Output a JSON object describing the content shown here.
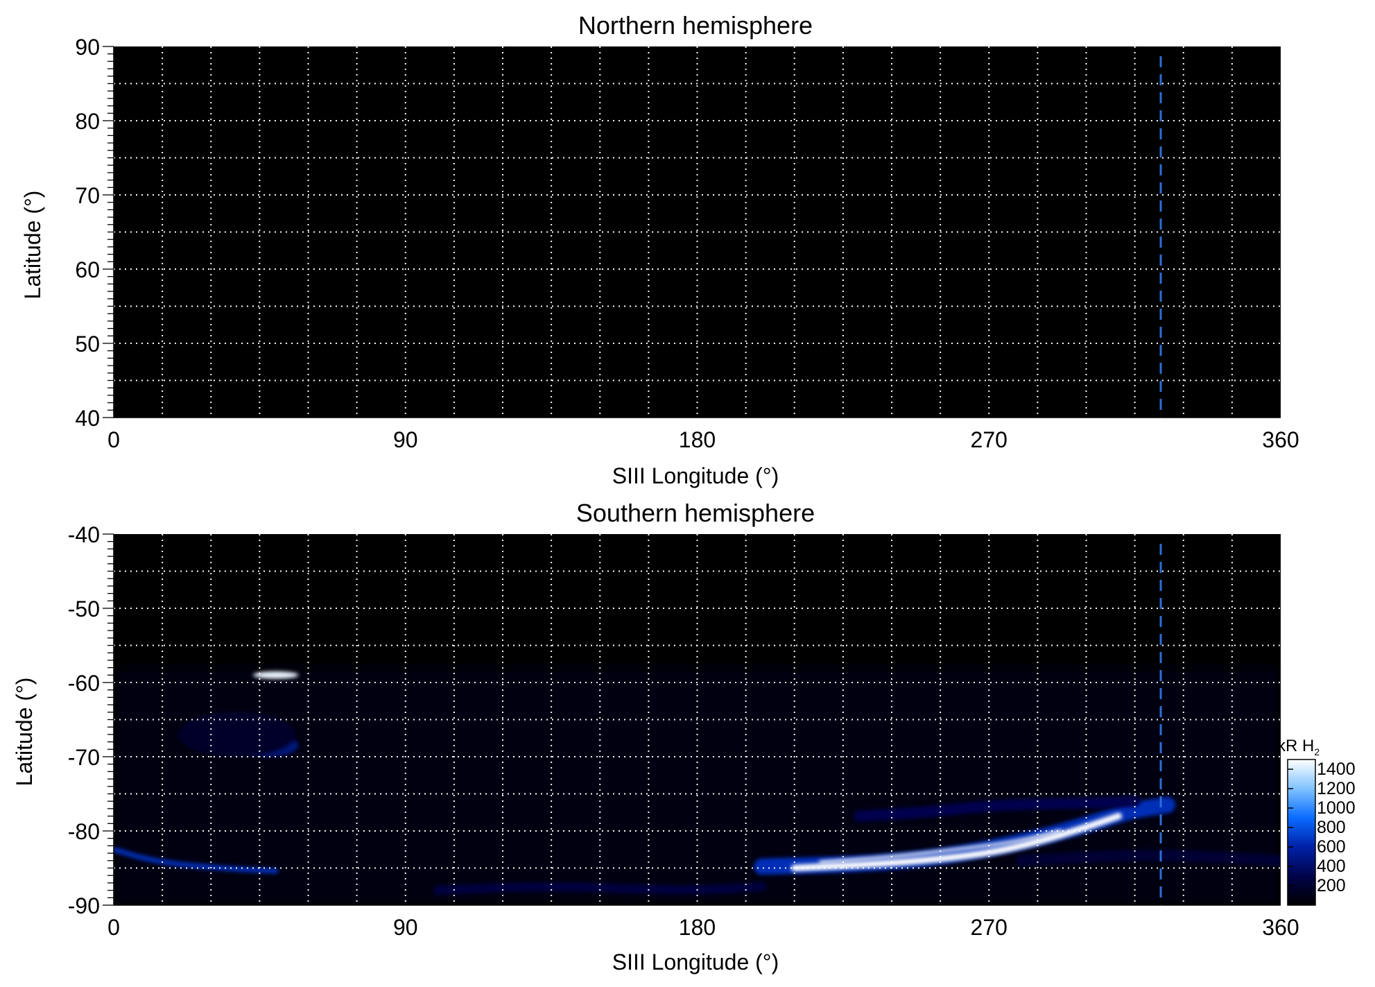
{
  "colorbar": {
    "label_main": "kR H",
    "label_sub": "2",
    "ticks": [
      200,
      400,
      600,
      800,
      1000,
      1200,
      1400
    ],
    "range": [
      0,
      1500
    ],
    "colors": [
      "#000000",
      "#00034a",
      "#0021a8",
      "#0a6cff",
      "#7fc2ff",
      "#ffffff"
    ]
  },
  "chart_data": [
    {
      "type": "heatmap",
      "title": "Northern hemisphere",
      "xlabel": "SIII Longitude (°)",
      "ylabel": "Latitude (°)",
      "xlim": [
        0,
        360
      ],
      "ylim": [
        40,
        90
      ],
      "xticks": [
        0,
        90,
        180,
        270,
        360
      ],
      "yticks": [
        40,
        50,
        60,
        70,
        80,
        90
      ],
      "grid": true,
      "grid_x_step": 15,
      "grid_y_step": 5,
      "reference_line_longitude": 323,
      "reference_line_color": "#2a6fd6",
      "features": []
    },
    {
      "type": "heatmap",
      "title": "Southern hemisphere",
      "xlabel": "SIII Longitude (°)",
      "ylabel": "Latitude (°)",
      "xlim": [
        0,
        360
      ],
      "ylim": [
        -90,
        -40
      ],
      "xticks": [
        0,
        90,
        180,
        270,
        360
      ],
      "yticks": [
        -90,
        -80,
        -70,
        -60,
        -50,
        -40
      ],
      "grid": true,
      "grid_x_step": 15,
      "grid_y_step": 5,
      "reference_line_longitude": 323,
      "reference_line_color": "#2a6fd6",
      "features": [
        {
          "kind": "background",
          "lon0": 0,
          "lon1": 360,
          "lat_top": -58,
          "lat_bottom": -90,
          "brightness": 90
        },
        {
          "kind": "blob",
          "lon": 50,
          "lat": -59,
          "dlon": 7,
          "dlat": 0.5,
          "brightness": 1450
        },
        {
          "kind": "blob",
          "lon": 48,
          "lat": -68.5,
          "dlon": 9,
          "dlat": 1.5,
          "brightness": 450
        },
        {
          "kind": "blob",
          "lon": 38,
          "lat": -67,
          "dlon": 18,
          "dlat": 3,
          "brightness": 180
        },
        {
          "kind": "arc",
          "lon": [
            0,
            10,
            20,
            30,
            40,
            50
          ],
          "lat": [
            -82.5,
            -83.8,
            -84.5,
            -84.9,
            -85.2,
            -85.4
          ],
          "width": 0.7,
          "brightness": 650
        },
        {
          "kind": "arc",
          "lon": [
            100,
            120,
            140,
            160,
            180,
            200
          ],
          "lat": [
            -88,
            -87.6,
            -87.5,
            -87.8,
            -88,
            -87.5
          ],
          "width": 1.2,
          "brightness": 260
        },
        {
          "kind": "arc",
          "lon": [
            200,
            220,
            240,
            260,
            280,
            295,
            305,
            310,
            315,
            325
          ],
          "lat": [
            -84.8,
            -84.6,
            -84.2,
            -83.2,
            -81.5,
            -79.8,
            -78.5,
            -77.8,
            -77.2,
            -76.5
          ],
          "width": 2.2,
          "brightness": 650
        },
        {
          "kind": "arc",
          "lon": [
            210,
            230,
            250,
            270,
            285,
            300,
            310
          ],
          "lat": [
            -85,
            -84.6,
            -84,
            -83,
            -81.5,
            -79.5,
            -78
          ],
          "width": 0.9,
          "brightness": 1500
        },
        {
          "kind": "arc",
          "lon": [
            218,
            240,
            260,
            278,
            292
          ],
          "lat": [
            -84.2,
            -83.5,
            -82.5,
            -81.5,
            -80
          ],
          "width": 0.4,
          "brightness": 1500
        },
        {
          "kind": "arc",
          "lon": [
            230,
            250,
            270,
            290,
            305,
            315
          ],
          "lat": [
            -78,
            -77.5,
            -76.6,
            -76.3,
            -76.2,
            -76
          ],
          "width": 1.5,
          "brightness": 320
        },
        {
          "kind": "arc",
          "lon": [
            280,
            300,
            320,
            340,
            360
          ],
          "lat": [
            -84,
            -83.5,
            -83.2,
            -83.5,
            -84
          ],
          "width": 1.5,
          "brightness": 220
        }
      ]
    }
  ]
}
